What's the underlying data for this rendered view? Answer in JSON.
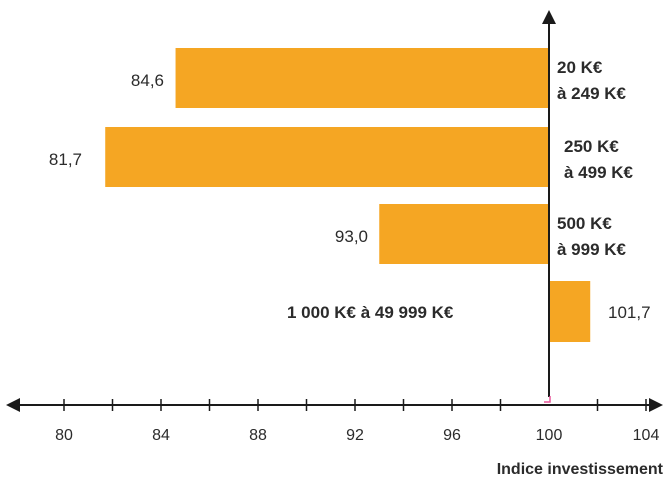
{
  "chart_data": {
    "type": "bar",
    "orientation": "horizontal",
    "baseline": 100,
    "categories": [
      [
        "20 K€",
        "à 249 K€"
      ],
      [
        "250 K€",
        "à 499 K€"
      ],
      [
        "500 K€",
        "à 999 K€"
      ],
      [
        "1 000 K€ à 49 999 K€"
      ]
    ],
    "values": [
      84.6,
      81.7,
      93.0,
      101.7
    ],
    "value_labels": [
      "84,6",
      "81,7",
      "93,0",
      "101,7"
    ],
    "xlim": [
      79,
      104
    ],
    "x_ticks": [
      80,
      84,
      88,
      92,
      96,
      100,
      104
    ],
    "xlabel": "Indice investissement",
    "bar_color": "#f5a623",
    "axis_color": "#1a1a1a"
  }
}
